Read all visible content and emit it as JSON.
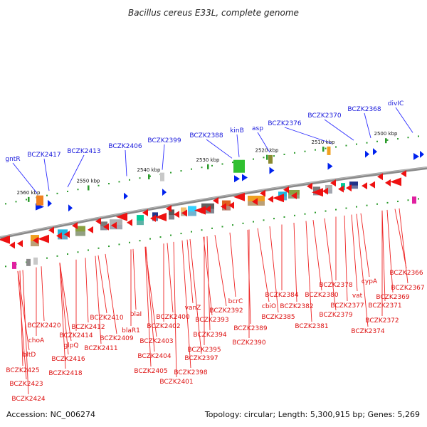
{
  "title": "Bacillus cereus E33L, complete genome",
  "footer": {
    "accession": "Accession: NC_006274",
    "summary": "Topology: circular; Length: 5,300,915 bp; Genes: 5,269"
  },
  "colors": {
    "backbone": "#888888",
    "tick_green": "#2a9a2a",
    "forward_gene": "#0022ee",
    "reverse_gene": "#ee1111",
    "forward_label": "#1a1adc",
    "reverse_label": "#dd1111"
  },
  "kbp_markers": [
    "2500 kbp",
    "2510 kbp",
    "2520 kbp",
    "2530 kbp",
    "2540 kbp",
    "2550 kbp",
    "2560 kbp"
  ],
  "forward_labels": [
    "divIC",
    "BCZK2368",
    "BCZK2370",
    "BCZK2376",
    "asp",
    "kinB",
    "BCZK2388",
    "BCZK2399",
    "BCZK2406",
    "BCZK2413",
    "BCZK2417",
    "gntR"
  ],
  "reverse_labels": [
    "BCZK2366",
    "BCZK2367",
    "BCZK2369",
    "BCZK2371",
    "BCZK2372",
    "BCZK2374",
    "cypA",
    "vat",
    "BCZK2377",
    "BCZK2378",
    "BCZK2379",
    "BCZK2380",
    "BCZK2381",
    "BCZK2382",
    "BCZK2384",
    "cbiO",
    "BCZK2385",
    "bcrC",
    "BCZK2389",
    "BCZK2390",
    "BCZK2392",
    "BCZK2393",
    "vanZ",
    "BCZK2394",
    "BCZK2395",
    "BCZK2397",
    "BCZK2398",
    "BCZK2400",
    "BCZK2401",
    "BCZK2402",
    "BCZK2403",
    "BCZK2404",
    "BCZK2405",
    "blaI",
    "blaR1",
    "BCZK2409",
    "BCZK2410",
    "BCZK2411",
    "BCZK2412",
    "BCZK2414",
    "glpQ",
    "BCZK2416",
    "BCZK2418",
    "BCZK2420",
    "choA",
    "bltD",
    "BCZK2423",
    "BCZK2424",
    "BCZK2425"
  ]
}
